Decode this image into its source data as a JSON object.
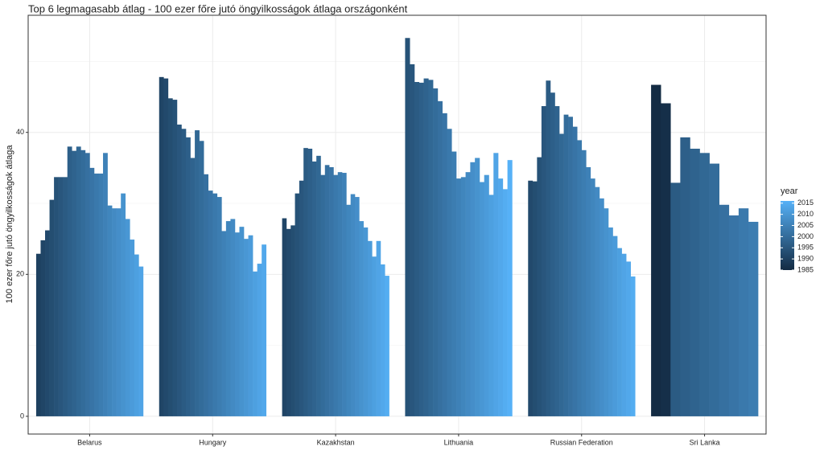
{
  "chart_data": {
    "type": "bar",
    "title": "Top 6 legmagasabb átlag - 100 ezer főre jutó öngyilkosságok átlaga országonként",
    "y_label": "100 ezer főre jutó öngyilkosságok átlaga",
    "categories": [
      "Belarus",
      "Hungary",
      "Kazakhstan",
      "Lithuania",
      "Russian Federation",
      "Sri Lanka"
    ],
    "bars": [
      {
        "x": [
          1990,
          1991,
          1992,
          1993,
          1994,
          1995,
          1996,
          1997,
          1998,
          1999,
          2000,
          2001,
          2002,
          2003,
          2004,
          2005,
          2006,
          2007,
          2008,
          2009,
          2010,
          2011,
          2012,
          2013
        ],
        "values": [
          22.9,
          24.8,
          26.2,
          30.5,
          33.7,
          33.7,
          33.7,
          38.0,
          37.4,
          38.0,
          37.5,
          37.1,
          35.0,
          34.2,
          34.2,
          37.1,
          29.7,
          29.3,
          29.3,
          31.4,
          27.8,
          24.9,
          22.8,
          21.1
        ]
      },
      {
        "x": [
          1991,
          1992,
          1993,
          1994,
          1995,
          1996,
          1997,
          1998,
          1999,
          2000,
          2001,
          2002,
          2003,
          2004,
          2005,
          2006,
          2007,
          2008,
          2009,
          2010,
          2011,
          2012,
          2013,
          2014
        ],
        "values": [
          47.8,
          47.6,
          44.8,
          44.6,
          41.1,
          40.5,
          39.3,
          36.4,
          40.3,
          38.8,
          34.1,
          31.8,
          31.4,
          30.9,
          26.1,
          27.5,
          27.8,
          25.9,
          26.7,
          25.0,
          25.5,
          20.4,
          21.5,
          24.2
        ]
      },
      {
        "x": [
          1991,
          1992,
          1993,
          1994,
          1995,
          1996,
          1997,
          1998,
          1999,
          2000,
          2001,
          2002,
          2003,
          2004,
          2005,
          2006,
          2007,
          2008,
          2009,
          2010,
          2011,
          2012,
          2013,
          2014,
          2015
        ],
        "values": [
          27.9,
          26.4,
          26.9,
          31.4,
          33.2,
          37.8,
          37.7,
          35.9,
          36.7,
          34.0,
          35.4,
          35.1,
          34.0,
          34.4,
          34.3,
          29.8,
          31.3,
          30.9,
          27.5,
          26.6,
          24.7,
          22.5,
          24.7,
          21.4,
          19.8
        ]
      },
      {
        "x": [
          1994,
          1995,
          1996,
          1997,
          1998,
          1999,
          2000,
          2001,
          2002,
          2003,
          2004,
          2005,
          2006,
          2007,
          2008,
          2009,
          2010,
          2011,
          2012,
          2013,
          2014,
          2015,
          2016
        ],
        "values": [
          53.3,
          49.6,
          47.1,
          47.0,
          47.6,
          47.4,
          46.2,
          44.4,
          42.7,
          40.5,
          37.3,
          33.5,
          33.7,
          34.4,
          35.8,
          36.4,
          33.0,
          34.0,
          31.2,
          37.1,
          33.5,
          32.0,
          36.1
        ]
      },
      {
        "x": [
          1992,
          1993,
          1994,
          1995,
          1996,
          1997,
          1998,
          1999,
          2000,
          2001,
          2002,
          2003,
          2004,
          2005,
          2006,
          2007,
          2008,
          2009,
          2010,
          2011,
          2012,
          2013,
          2014,
          2015
        ],
        "values": [
          33.2,
          33.1,
          36.5,
          43.7,
          47.3,
          45.6,
          43.7,
          39.8,
          42.5,
          42.2,
          40.8,
          38.9,
          37.5,
          35.1,
          33.5,
          32.3,
          30.7,
          29.3,
          26.6,
          25.4,
          23.7,
          22.9,
          21.8,
          19.7
        ]
      },
      {
        "x": [
          1985,
          1986,
          1996,
          1997,
          1998,
          1999,
          2000,
          2001,
          2002,
          2003,
          2004
        ],
        "values": [
          46.7,
          44.1,
          32.9,
          39.3,
          37.7,
          37.1,
          35.6,
          29.8,
          28.3,
          29.3,
          27.4
        ]
      }
    ],
    "ylim": [
      -2.5,
      56.5
    ],
    "yticks": [
      0,
      20,
      40
    ],
    "yminor": [
      10,
      30,
      50
    ],
    "grid": true,
    "legend": {
      "title": "year",
      "ticks": [
        2015,
        2010,
        2005,
        2000,
        1995,
        1990,
        1985
      ],
      "lim": [
        1985,
        2016
      ],
      "low": "#132B43",
      "high": "#56B1F7"
    }
  }
}
